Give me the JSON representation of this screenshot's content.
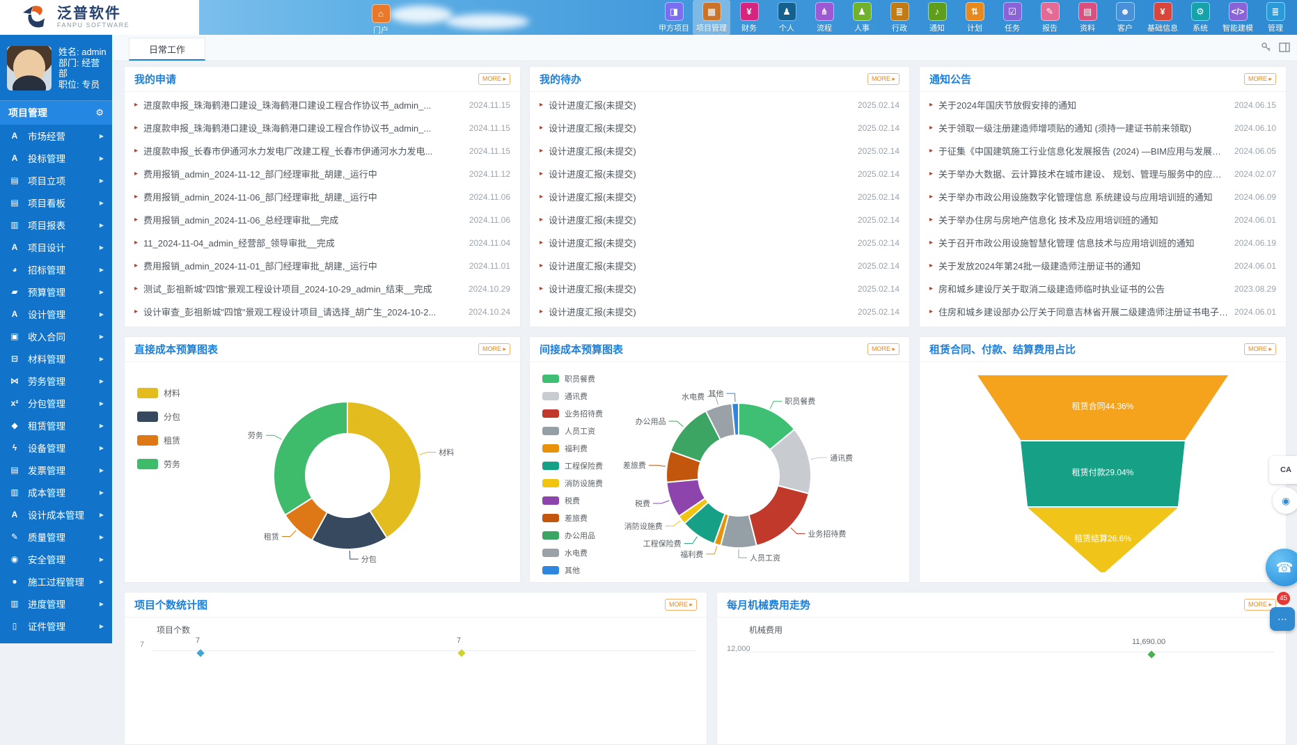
{
  "topbar": {
    "logo": {
      "cn": "泛普软件",
      "en": "FANPU SOFTWARE"
    },
    "home": {
      "label": "门户",
      "color": "#e8792a",
      "glyph": "⌂"
    },
    "items": [
      {
        "label": "甲方项目",
        "color": "#7a6ff0",
        "glyph": "◨",
        "icon": "owner-project-icon",
        "active": false
      },
      {
        "label": "项目管理",
        "color": "#c9742a",
        "glyph": "▦",
        "icon": "project-management-icon",
        "active": true
      },
      {
        "label": "财务",
        "color": "#d6257e",
        "glyph": "¥",
        "icon": "finance-icon",
        "active": false
      },
      {
        "label": "个人",
        "color": "#14618f",
        "glyph": "♟",
        "icon": "personal-icon",
        "active": false
      },
      {
        "label": "流程",
        "color": "#9c59d1",
        "glyph": "⋔",
        "icon": "workflow-icon",
        "active": false
      },
      {
        "label": "人事",
        "color": "#72b12c",
        "glyph": "♟",
        "icon": "hr-icon",
        "active": false
      },
      {
        "label": "行政",
        "color": "#c07b16",
        "glyph": "≣",
        "icon": "administration-icon",
        "active": false
      },
      {
        "label": "通知",
        "color": "#5f9e1c",
        "glyph": "♪",
        "icon": "notification-icon",
        "active": false
      },
      {
        "label": "计划",
        "color": "#e8891d",
        "glyph": "⇅",
        "icon": "plan-icon",
        "active": false
      },
      {
        "label": "任务",
        "color": "#8a63d6",
        "glyph": "☑",
        "icon": "task-icon",
        "active": false
      },
      {
        "label": "报告",
        "color": "#e26a94",
        "glyph": "✎",
        "icon": "report-icon",
        "active": false
      },
      {
        "label": "资料",
        "color": "#d94f7e",
        "glyph": "▤",
        "icon": "document-icon",
        "active": false
      },
      {
        "label": "客户",
        "color": "#4a90d8",
        "glyph": "☻",
        "icon": "customer-icon",
        "active": false
      },
      {
        "label": "基础信息",
        "color": "#d8453a",
        "glyph": "¥",
        "icon": "base-info-icon",
        "active": false
      },
      {
        "label": "系统",
        "color": "#16a2a8",
        "glyph": "⚙",
        "icon": "system-icon",
        "active": false
      },
      {
        "label": "智能建模",
        "color": "#8a63d6",
        "glyph": "</>",
        "icon": "smart-modeling-icon",
        "active": false
      },
      {
        "label": "管理",
        "color": "#2a9ad8",
        "glyph": "≣",
        "icon": "manage-icon",
        "active": false
      }
    ]
  },
  "sidebar": {
    "user": {
      "name": "姓名: admin",
      "dept": "部门: 经营部",
      "title": "职位: 专员"
    },
    "section": "项目管理",
    "items": [
      {
        "label": "市场经营",
        "glyph": "A"
      },
      {
        "label": "投标管理",
        "glyph": "A"
      },
      {
        "label": "项目立项",
        "glyph": "▤"
      },
      {
        "label": "项目看板",
        "glyph": "▤"
      },
      {
        "label": "项目报表",
        "glyph": "▥"
      },
      {
        "label": "项目设计",
        "glyph": "A"
      },
      {
        "label": "招标管理",
        "glyph": "◕"
      },
      {
        "label": "预算管理",
        "glyph": "▰"
      },
      {
        "label": "设计管理",
        "glyph": "A"
      },
      {
        "label": "收入合同",
        "glyph": "▣"
      },
      {
        "label": "材料管理",
        "glyph": "⊟"
      },
      {
        "label": "劳务管理",
        "glyph": "⋈"
      },
      {
        "label": "分包管理",
        "glyph": "x²"
      },
      {
        "label": "租赁管理",
        "glyph": "◆"
      },
      {
        "label": "设备管理",
        "glyph": "ϟ"
      },
      {
        "label": "发票管理",
        "glyph": "▤"
      },
      {
        "label": "成本管理",
        "glyph": "▥"
      },
      {
        "label": "设计成本管理",
        "glyph": "A"
      },
      {
        "label": "质量管理",
        "glyph": "✎"
      },
      {
        "label": "安全管理",
        "glyph": "◉"
      },
      {
        "label": "施工过程管理",
        "glyph": "●"
      },
      {
        "label": "进度管理",
        "glyph": "▥"
      },
      {
        "label": "证件管理",
        "glyph": "▯"
      }
    ]
  },
  "tabbar": {
    "active_tab": "日常工作"
  },
  "more_label": "MORE",
  "panels": {
    "apps": {
      "title": "我的申请",
      "items": [
        {
          "text": "进度款申报_珠海鹤港口建设_珠海鹤港口建设工程合作协议书_admin_...",
          "date": "2024.11.15"
        },
        {
          "text": "进度款申报_珠海鹤港口建设_珠海鹤港口建设工程合作协议书_admin_...",
          "date": "2024.11.15"
        },
        {
          "text": "进度款申报_长春市伊通河水力发电厂改建工程_长春市伊通河水力发电...",
          "date": "2024.11.15"
        },
        {
          "text": "费用报销_admin_2024-11-12_部门经理审批_胡建,_运行中",
          "date": "2024.11.12"
        },
        {
          "text": "费用报销_admin_2024-11-06_部门经理审批_胡建,_运行中",
          "date": "2024.11.06"
        },
        {
          "text": "费用报销_admin_2024-11-06_总经理审批__完成",
          "date": "2024.11.06"
        },
        {
          "text": "11_2024-11-04_admin_经营部_领导审批__完成",
          "date": "2024.11.04"
        },
        {
          "text": "费用报销_admin_2024-11-01_部门经理审批_胡建,_运行中",
          "date": "2024.11.01"
        },
        {
          "text": "测试_彭祖新城\"四馆\"景观工程设计项目_2024-10-29_admin_结束__完成",
          "date": "2024.10.29"
        },
        {
          "text": "设计审查_彭祖新城\"四馆\"景观工程设计项目_请选择_胡广生_2024-10-2...",
          "date": "2024.10.24"
        }
      ]
    },
    "todo": {
      "title": "我的待办",
      "items": [
        {
          "text": "设计进度汇报(未提交)",
          "date": "2025.02.14"
        },
        {
          "text": "设计进度汇报(未提交)",
          "date": "2025.02.14"
        },
        {
          "text": "设计进度汇报(未提交)",
          "date": "2025.02.14"
        },
        {
          "text": "设计进度汇报(未提交)",
          "date": "2025.02.14"
        },
        {
          "text": "设计进度汇报(未提交)",
          "date": "2025.02.14"
        },
        {
          "text": "设计进度汇报(未提交)",
          "date": "2025.02.14"
        },
        {
          "text": "设计进度汇报(未提交)",
          "date": "2025.02.14"
        },
        {
          "text": "设计进度汇报(未提交)",
          "date": "2025.02.14"
        },
        {
          "text": "设计进度汇报(未提交)",
          "date": "2025.02.14"
        },
        {
          "text": "设计进度汇报(未提交)",
          "date": "2025.02.14"
        }
      ]
    },
    "notice": {
      "title": "通知公告",
      "items": [
        {
          "text": "关于2024年国庆节放假安排的通知",
          "date": "2024.06.15"
        },
        {
          "text": "关于领取一级注册建造师增项贴的通知 (须持一建证书前来领取)",
          "date": "2024.06.10"
        },
        {
          "text": "于征集《中国建筑施工行业信息化发展报告 (2024) —BIM应用与发展》材料...",
          "date": "2024.06.05"
        },
        {
          "text": "关于举办大数据、云计算技术在城市建设、 规划、管理与服务中的应用培训班...",
          "date": "2024.02.07"
        },
        {
          "text": "关于举办市政公用设施数字化管理信息 系统建设与应用培训班的通知",
          "date": "2024.06.09"
        },
        {
          "text": "关于举办住房与房地产信息化 技术及应用培训班的通知",
          "date": "2024.06.01"
        },
        {
          "text": "关于召开市政公用设施智慧化管理 信息技术与应用培训班的通知",
          "date": "2024.06.19"
        },
        {
          "text": "关于发放2024年第24批一级建造师注册证书的通知",
          "date": "2024.06.01"
        },
        {
          "text": "房和城乡建设厅关于取消二级建造师临时执业证书的公告",
          "date": "2023.08.29"
        },
        {
          "text": "住房和城乡建设部办公厅关于同意吉林省开展二级建造师注册证书电子化试点...",
          "date": "2024.06.01"
        }
      ]
    }
  },
  "chart_data": [
    {
      "type": "pie",
      "variant": "donut",
      "title": "直接成本预算图表",
      "categories": [
        "材料",
        "分包",
        "租赁",
        "劳务"
      ],
      "values": [
        41,
        17,
        8,
        34
      ],
      "colors": [
        "#e3bd1f",
        "#37495e",
        "#de7817",
        "#3fbb6c"
      ],
      "legend_position": "left"
    },
    {
      "type": "pie",
      "variant": "donut",
      "title": "间接成本预算图表",
      "categories": [
        "职员餐费",
        "通讯费",
        "业务招待费",
        "人员工资",
        "福利费",
        "工程保险费",
        "消防设施费",
        "税费",
        "差旅费",
        "办公用品",
        "水电费",
        "其他"
      ],
      "values": [
        14,
        15,
        17,
        8,
        1.5,
        8,
        2,
        8,
        7,
        12,
        6,
        1.5
      ],
      "colors": [
        "#3fbf73",
        "#c8ccd0",
        "#c0392b",
        "#95a0a6",
        "#e8920c",
        "#16a085",
        "#f1c40f",
        "#8e44ad",
        "#c2560d",
        "#3da563",
        "#9aa2a8",
        "#2e86de"
      ],
      "legend_position": "left"
    },
    {
      "type": "funnel",
      "title": "租赁合同、付款、结算费用占比",
      "categories": [
        "租赁合同",
        "租赁付款",
        "租赁结算"
      ],
      "values": [
        44.36,
        29.04,
        26.6
      ],
      "labels": [
        "租赁合同44.36%",
        "租赁付款29.04%",
        "租赁结算26.6%"
      ],
      "colors": [
        "#f5a31c",
        "#16a085",
        "#f0c419"
      ]
    },
    {
      "type": "line",
      "title": "项目个数统计图",
      "ylabel": "项目个数",
      "visible_y_tick": "7",
      "points": [
        {
          "label": "7",
          "color": "#3fa7d6"
        },
        {
          "label": "7",
          "color": "#cfd22e"
        }
      ]
    },
    {
      "type": "line",
      "title": "每月机械费用走势",
      "ylabel": "机械费用",
      "visible_y_tick": "12,000",
      "points": [
        {
          "label": "11,690.00",
          "color": "#4caf50"
        }
      ]
    }
  ],
  "floating": {
    "qr_text": "CA",
    "unread_count": "45"
  }
}
